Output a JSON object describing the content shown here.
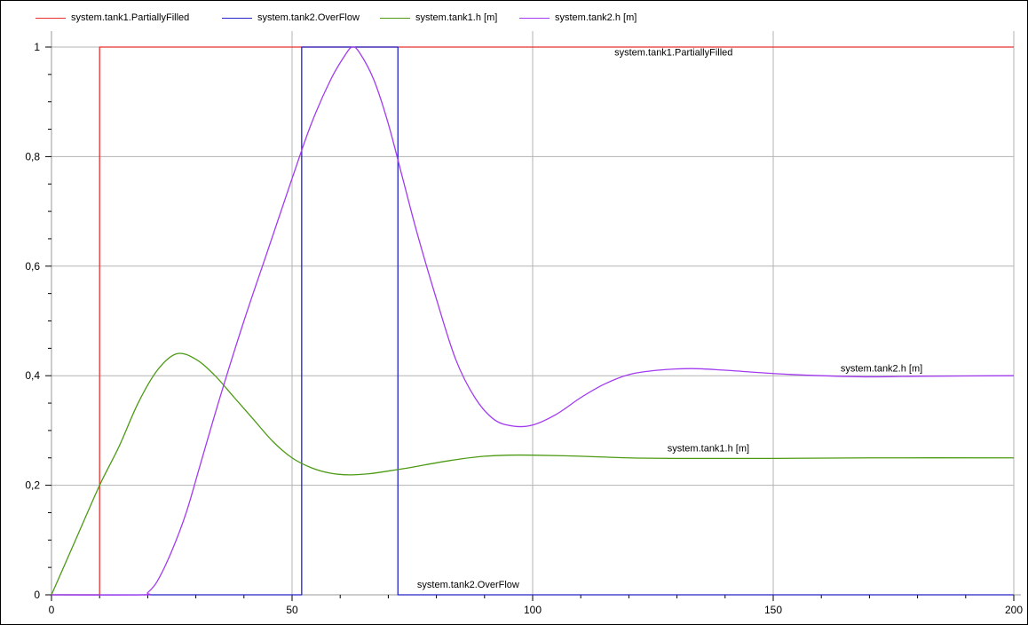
{
  "chart_data": {
    "type": "line",
    "xlim": [
      0,
      200
    ],
    "ylim": [
      0,
      1
    ],
    "x_ticks": [
      0,
      50,
      100,
      150,
      200
    ],
    "x_tick_labels": [
      "0",
      "50",
      "100",
      "150",
      "200"
    ],
    "y_ticks": [
      0,
      0.2,
      0.4,
      0.6,
      0.8,
      1
    ],
    "y_tick_labels": [
      "0",
      "0,2",
      "0,4",
      "0,6",
      "0,8",
      "1"
    ],
    "grid": true,
    "legend_position": "top",
    "series": [
      {
        "name": "system.tank1.PartiallyFilled",
        "color": "#e8312f",
        "label": "system.tank1.PartiallyFilled",
        "points": [
          [
            0,
            0
          ],
          [
            10,
            0
          ],
          [
            10,
            1
          ],
          [
            200,
            1
          ]
        ]
      },
      {
        "name": "system.tank2.OverFlow",
        "color": "#2323c8",
        "label": "system.tank2.OverFlow",
        "points": [
          [
            0,
            0
          ],
          [
            52,
            0
          ],
          [
            52,
            1
          ],
          [
            72,
            1
          ],
          [
            72,
            0
          ],
          [
            200,
            0
          ]
        ]
      },
      {
        "name": "system.tank1.h [m]",
        "color": "#4c9a14",
        "label": "system.tank1.h [m]",
        "points": [
          [
            0,
            0
          ],
          [
            5,
            0.1
          ],
          [
            10,
            0.2
          ],
          [
            14,
            0.27
          ],
          [
            18,
            0.35
          ],
          [
            22,
            0.41
          ],
          [
            26,
            0.44
          ],
          [
            30,
            0.43
          ],
          [
            34,
            0.4
          ],
          [
            38,
            0.36
          ],
          [
            42,
            0.32
          ],
          [
            46,
            0.28
          ],
          [
            50,
            0.25
          ],
          [
            54,
            0.232
          ],
          [
            58,
            0.222
          ],
          [
            62,
            0.219
          ],
          [
            66,
            0.221
          ],
          [
            70,
            0.226
          ],
          [
            75,
            0.233
          ],
          [
            80,
            0.241
          ],
          [
            85,
            0.248
          ],
          [
            90,
            0.253
          ],
          [
            95,
            0.255
          ],
          [
            100,
            0.255
          ],
          [
            110,
            0.253
          ],
          [
            120,
            0.25
          ],
          [
            130,
            0.249
          ],
          [
            140,
            0.249
          ],
          [
            150,
            0.249
          ],
          [
            170,
            0.25
          ],
          [
            200,
            0.25
          ]
        ]
      },
      {
        "name": "system.tank2.h [m]",
        "color": "#a23bf0",
        "label": "system.tank2.h [m]",
        "points": [
          [
            0,
            0
          ],
          [
            19,
            0
          ],
          [
            20,
            0.004
          ],
          [
            22,
            0.025
          ],
          [
            25,
            0.08
          ],
          [
            28,
            0.15
          ],
          [
            31,
            0.24
          ],
          [
            35,
            0.36
          ],
          [
            40,
            0.5
          ],
          [
            45,
            0.63
          ],
          [
            50,
            0.76
          ],
          [
            54,
            0.86
          ],
          [
            58,
            0.94
          ],
          [
            61,
            0.985
          ],
          [
            62.5,
            1.0
          ],
          [
            64,
            0.99
          ],
          [
            67,
            0.94
          ],
          [
            70,
            0.86
          ],
          [
            73,
            0.76
          ],
          [
            76,
            0.66
          ],
          [
            80,
            0.54
          ],
          [
            84,
            0.43
          ],
          [
            88,
            0.36
          ],
          [
            92,
            0.32
          ],
          [
            96,
            0.308
          ],
          [
            100,
            0.31
          ],
          [
            105,
            0.33
          ],
          [
            110,
            0.36
          ],
          [
            115,
            0.385
          ],
          [
            120,
            0.402
          ],
          [
            126,
            0.41
          ],
          [
            133,
            0.413
          ],
          [
            140,
            0.41
          ],
          [
            150,
            0.404
          ],
          [
            160,
            0.4
          ],
          [
            170,
            0.398
          ],
          [
            180,
            0.399
          ],
          [
            200,
            0.4
          ]
        ]
      }
    ],
    "annotations": [
      {
        "text": "system.tank1.PartiallyFilled",
        "x": 117,
        "y": 0.985
      },
      {
        "text": "system.tank2.h [m]",
        "x": 164,
        "y": 0.408
      },
      {
        "text": "system.tank1.h [m]",
        "x": 128,
        "y": 0.262
      },
      {
        "text": "system.tank2.OverFlow",
        "x": 76,
        "y": 0.013
      }
    ]
  }
}
